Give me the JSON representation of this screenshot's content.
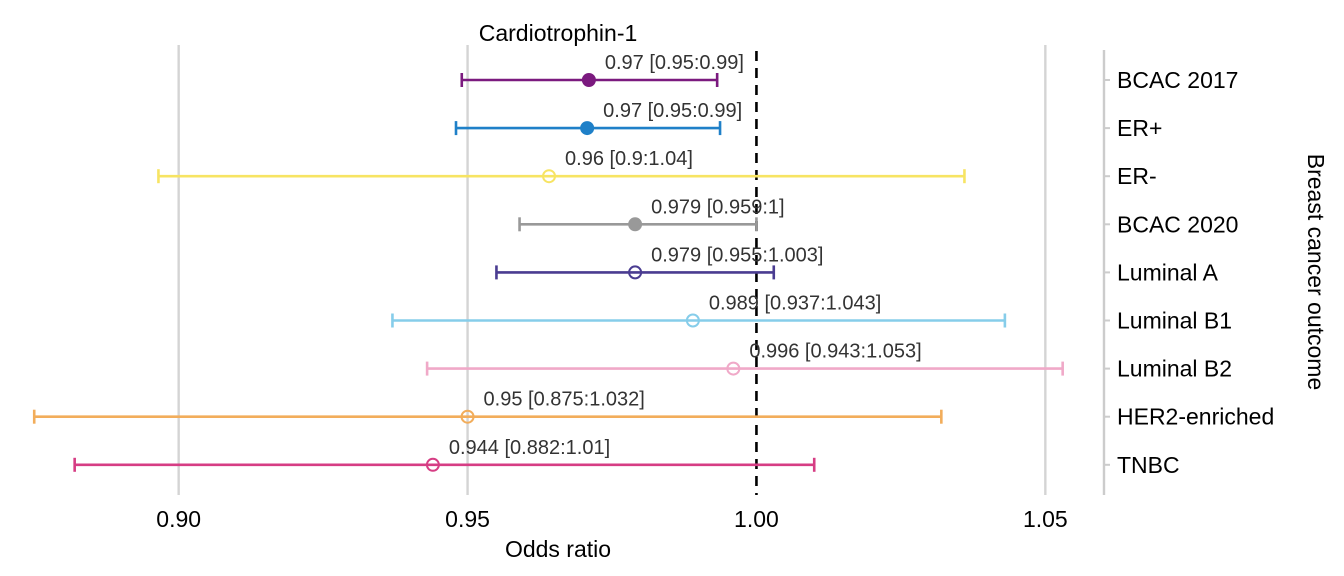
{
  "chart_data": {
    "type": "forest",
    "title": "Cardiotrophin-1",
    "xlabel": "Odds ratio",
    "ylabel": "Breast cancer outcome",
    "xlim": [
      0.8715,
      1.056
    ],
    "x_ticks": [
      0.9,
      0.95,
      1.0,
      1.05
    ],
    "x_tick_labels": [
      "0.90",
      "0.95",
      "1.00",
      "1.05"
    ],
    "reference_line": 1.0,
    "grid": "vertical",
    "rows": [
      {
        "label": "BCAC 2017",
        "or": 0.971,
        "lo": 0.949,
        "hi": 0.9932,
        "text": "0.97 [0.95:0.99]",
        "color": "#7b1a7f",
        "filled": true
      },
      {
        "label": "ER+",
        "or": 0.9707,
        "lo": 0.948,
        "hi": 0.9937,
        "text": "0.97 [0.95:0.99]",
        "color": "#1f80c8",
        "filled": true
      },
      {
        "label": "ER-",
        "or": 0.9641,
        "lo": 0.8965,
        "hi": 1.036,
        "text": "0.96 [0.9:1.04]",
        "color": "#f7e463",
        "filled": false
      },
      {
        "label": "BCAC 2020",
        "or": 0.979,
        "lo": 0.959,
        "hi": 1.0,
        "text": "0.979 [0.959:1]",
        "color": "#999999",
        "filled": true
      },
      {
        "label": "Luminal A",
        "or": 0.979,
        "lo": 0.955,
        "hi": 1.003,
        "text": "0.979 [0.955:1.003]",
        "color": "#4a3c91",
        "filled": false
      },
      {
        "label": "Luminal B1",
        "or": 0.989,
        "lo": 0.937,
        "hi": 1.043,
        "text": "0.989 [0.937:1.043]",
        "color": "#86cdea",
        "filled": false
      },
      {
        "label": "Luminal B2",
        "or": 0.996,
        "lo": 0.943,
        "hi": 1.053,
        "text": "0.996 [0.943:1.053]",
        "color": "#f0a9c8",
        "filled": false
      },
      {
        "label": "HER2-enriched",
        "or": 0.95,
        "lo": 0.875,
        "hi": 1.032,
        "text": "0.95 [0.875:1.032]",
        "color": "#f2ad5b",
        "filled": false
      },
      {
        "label": "TNBC",
        "or": 0.944,
        "lo": 0.882,
        "hi": 1.01,
        "text": "0.944 [0.882:1.01]",
        "color": "#d63d84",
        "filled": false
      }
    ]
  }
}
